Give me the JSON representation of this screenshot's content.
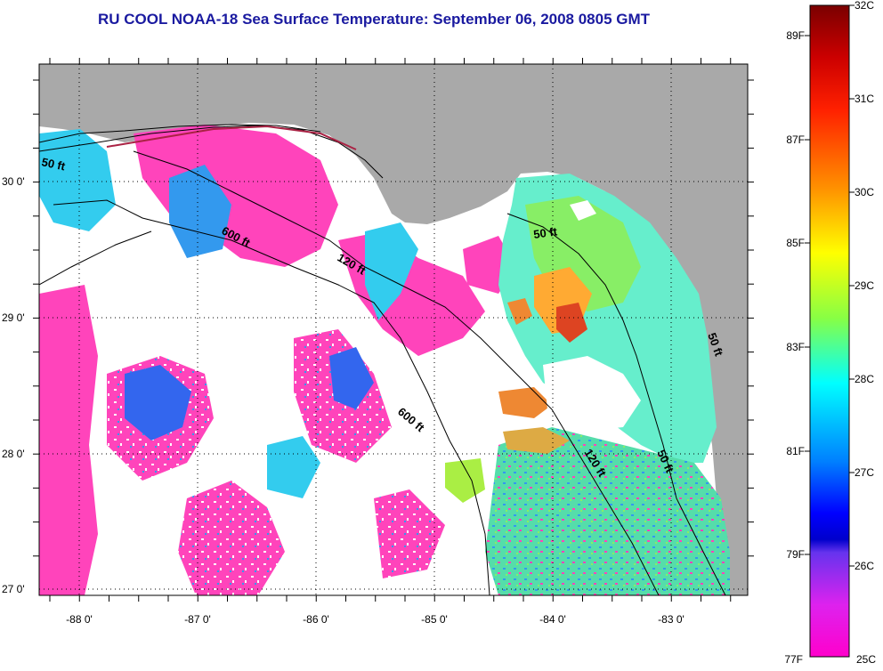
{
  "title": "RU COOL  NOAA-18  Sea Surface Temperature:  September 06, 2008 0805 GMT",
  "map": {
    "lat_labels": [
      {
        "text": "30 0'",
        "lat": 30
      },
      {
        "text": "29 0'",
        "lat": 29
      },
      {
        "text": "28 0'",
        "lat": 28
      },
      {
        "text": "27 0'",
        "lat": 27
      }
    ],
    "lon_labels": [
      {
        "text": "-88 0'",
        "lon": -88
      },
      {
        "text": "-87 0'",
        "lon": -87
      },
      {
        "text": "-86 0'",
        "lon": -86
      },
      {
        "text": "-85 0'",
        "lon": -85
      },
      {
        "text": "-84 0'",
        "lon": -84
      },
      {
        "text": "-83 0'",
        "lon": -83
      }
    ],
    "isobath_labels": [
      "50 ft",
      "600 ft",
      "120 ft",
      "50 ft",
      "600 ft",
      "120 ft",
      "50 ft",
      "50 ft"
    ],
    "colors": {
      "land": "#a9a9a9",
      "cloud": "#ffffff",
      "cool_water": "#ff44bb",
      "mid_water": "#33ddee",
      "warm_water": "#77ee77"
    }
  },
  "colorbar": {
    "celsius": [
      "32C",
      "31C",
      "30C",
      "29C",
      "28C",
      "27C",
      "26C",
      "25C"
    ],
    "fahrenheit": [
      "89F",
      "87F",
      "85F",
      "83F",
      "81F",
      "79F",
      "77F"
    ]
  }
}
